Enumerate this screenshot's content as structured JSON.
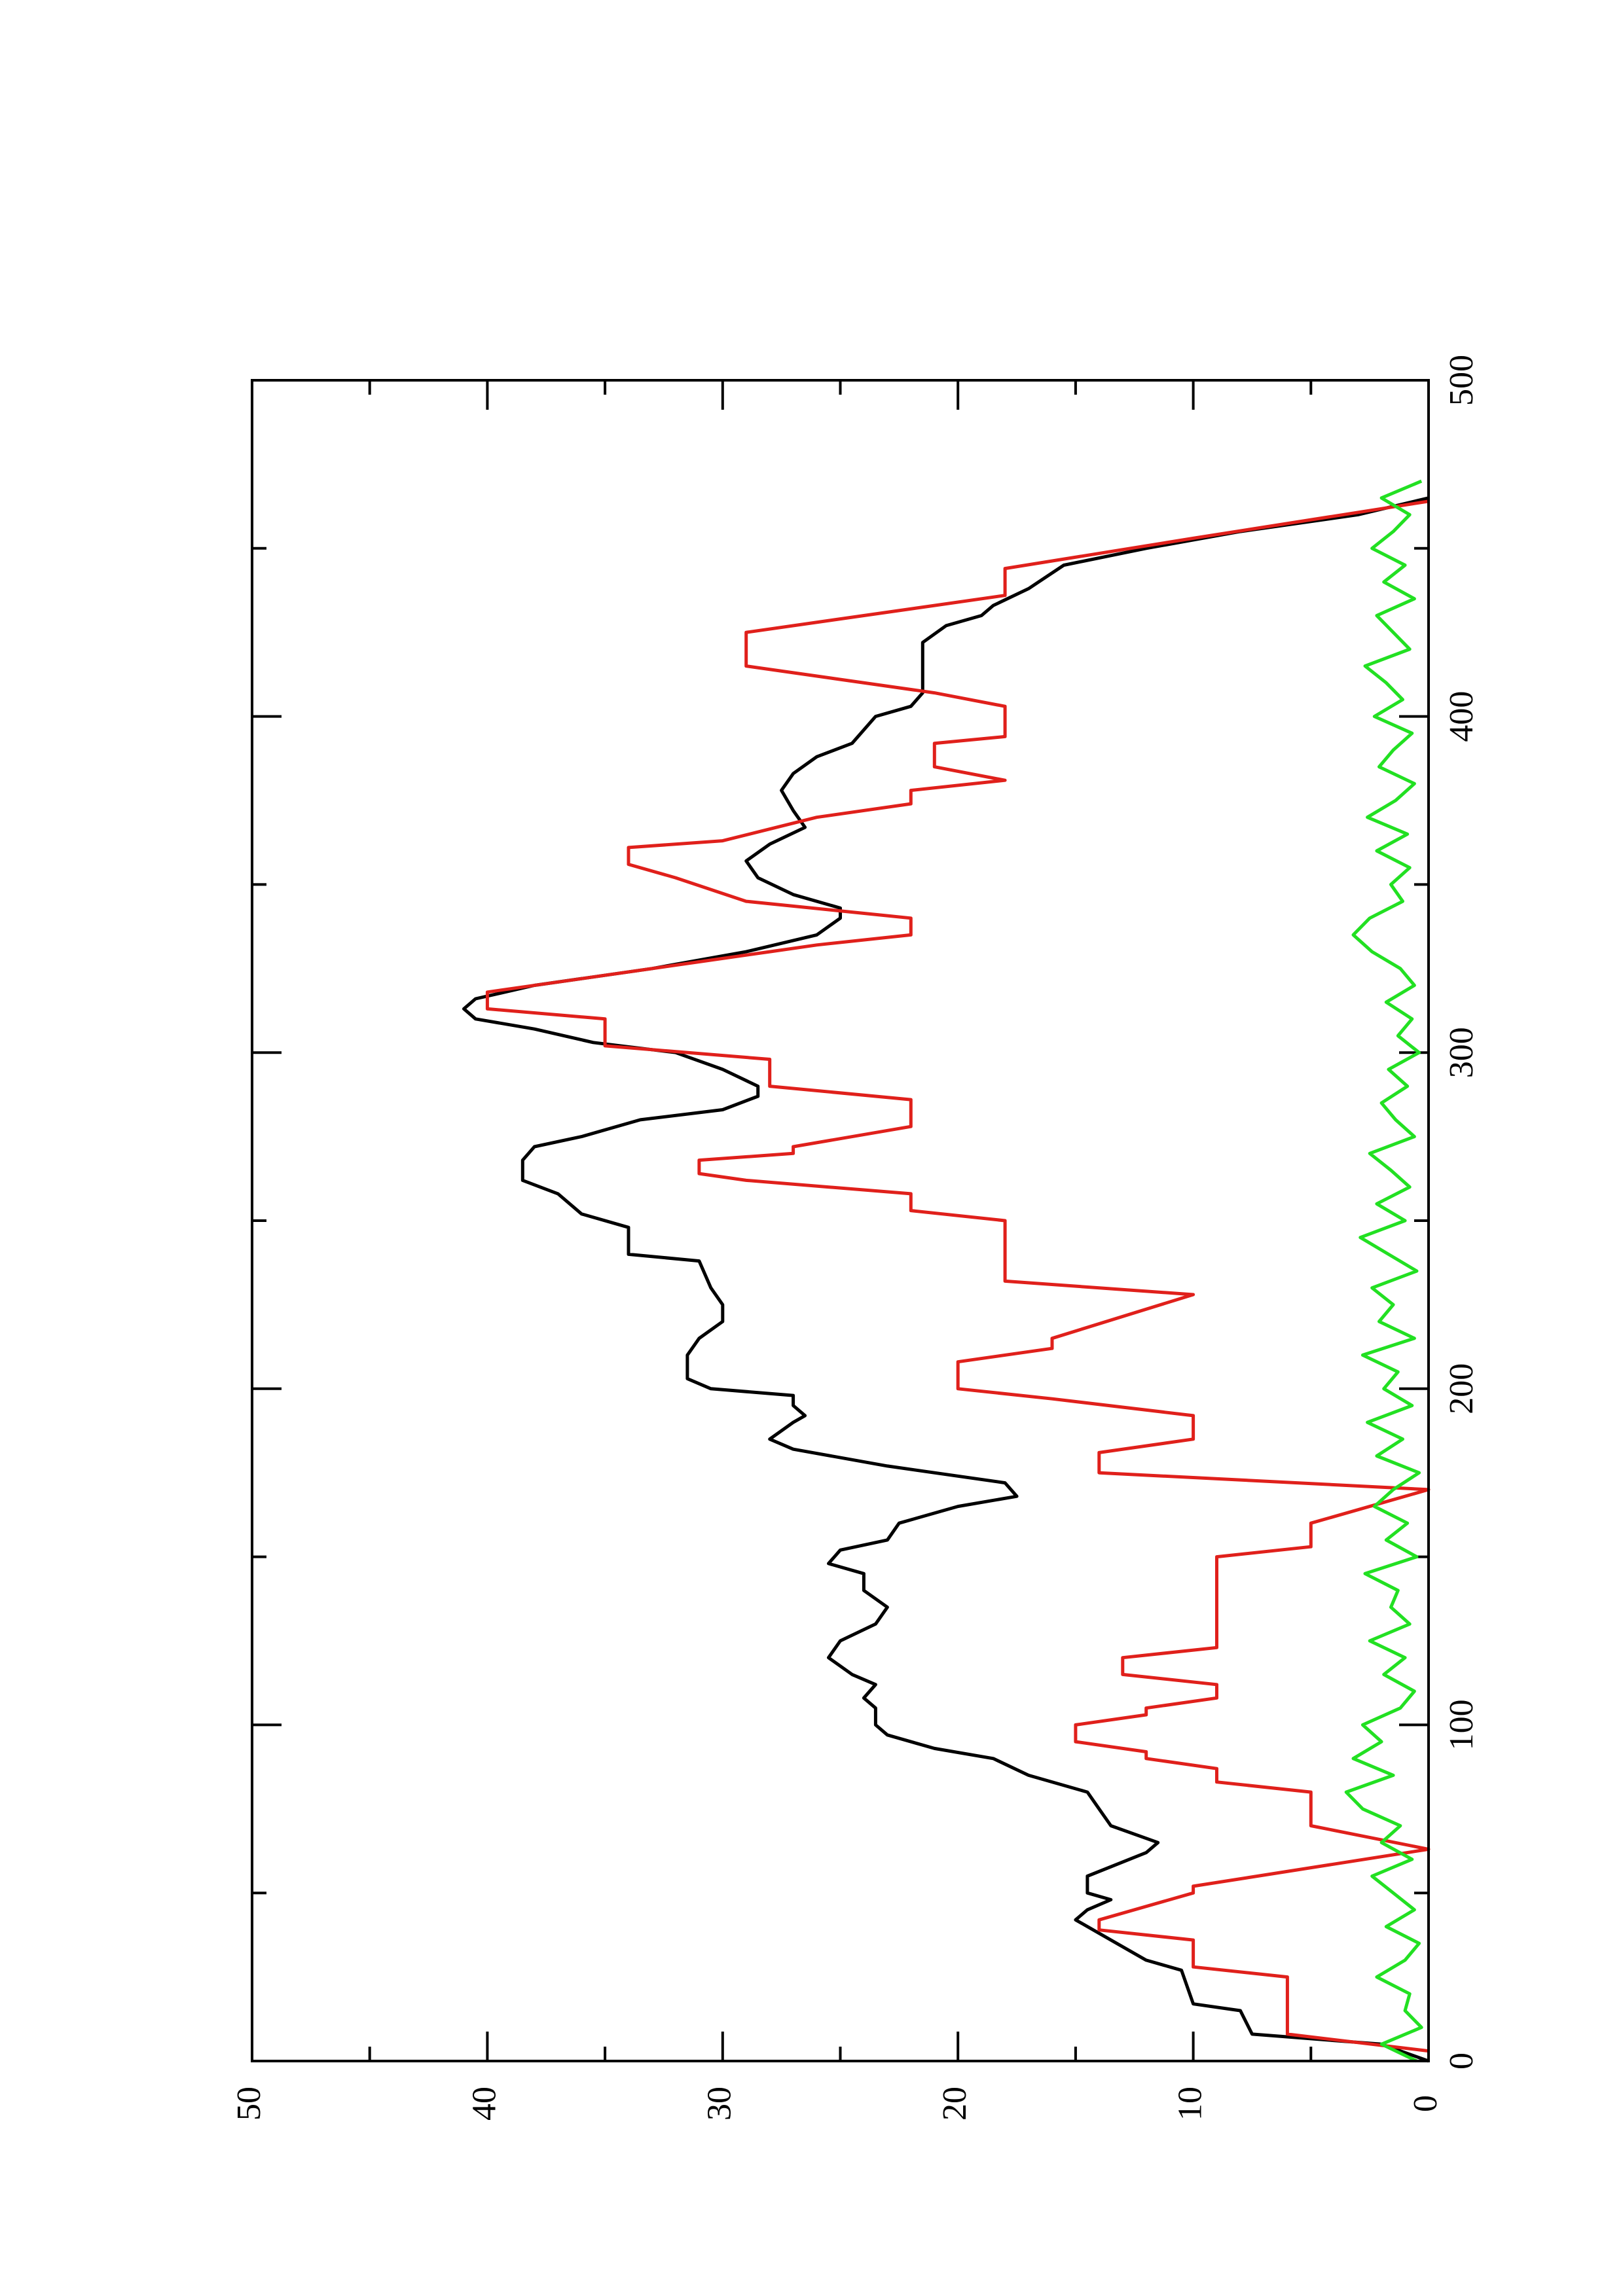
{
  "chart_data": {
    "type": "line",
    "xlim": [
      0,
      500
    ],
    "ylim": [
      0,
      50
    ],
    "xticks": [
      0,
      100,
      200,
      300,
      400,
      500
    ],
    "xminorticks": [
      50,
      150,
      250,
      350,
      450
    ],
    "yticks": [
      0,
      10,
      20,
      30,
      40,
      50
    ],
    "yminorticks": [
      5,
      15,
      25,
      35,
      45
    ],
    "series": [
      {
        "color": "#000000",
        "x": [
          0,
          5,
          8,
          15,
          17,
          27,
          30,
          38,
          42,
          45,
          48,
          50,
          55,
          62,
          65,
          70,
          75,
          80,
          85,
          90,
          93,
          97,
          100,
          105,
          108,
          112,
          115,
          120,
          125,
          130,
          135,
          140,
          145,
          148,
          152,
          155,
          160,
          165,
          168,
          172,
          177,
          182,
          185,
          190,
          192,
          195,
          198,
          200,
          203,
          210,
          215,
          220,
          225,
          230,
          238,
          240,
          248,
          252,
          258,
          262,
          268,
          272,
          275,
          280,
          283,
          287,
          290,
          295,
          300,
          303,
          307,
          310,
          313,
          316,
          320,
          325,
          330,
          335,
          340,
          343,
          347,
          352,
          357,
          362,
          367,
          372,
          378,
          383,
          388,
          392,
          400,
          403,
          407,
          410,
          415,
          418,
          422,
          427,
          430,
          433,
          438,
          445,
          450,
          455,
          460,
          465
        ],
        "values": [
          0,
          2,
          7.5,
          8,
          10,
          10.5,
          12,
          14,
          15,
          14.5,
          13.5,
          14.5,
          14.5,
          12,
          11.5,
          13.5,
          14,
          14.5,
          17,
          18.5,
          21,
          23,
          23.5,
          23.5,
          24,
          23.5,
          24.5,
          25.5,
          25,
          23.5,
          23,
          24,
          24,
          25.5,
          25,
          23,
          22.5,
          20,
          17.5,
          18,
          23,
          27,
          28,
          27,
          26.5,
          27,
          27,
          30.5,
          31.5,
          31.5,
          31,
          30,
          30,
          30.5,
          31,
          34,
          34,
          36,
          37,
          38.5,
          38.5,
          38,
          36,
          33.5,
          30,
          28.5,
          28.5,
          30,
          32,
          35.5,
          38,
          40.5,
          41,
          40.5,
          38,
          33,
          29,
          26,
          25,
          25,
          27,
          28.5,
          29,
          28,
          26.5,
          27,
          27.5,
          27,
          26,
          24.5,
          23.5,
          22,
          21.5,
          21.5,
          21.5,
          21.5,
          21.5,
          20.5,
          19,
          18.5,
          17,
          15.5,
          12,
          8,
          3,
          0
        ]
      },
      {
        "color": "#e0201b",
        "x": [
          3,
          8,
          25,
          28,
          36,
          39,
          42,
          50,
          52,
          63,
          70,
          80,
          83,
          87,
          90,
          92,
          95,
          100,
          103,
          105,
          108,
          112,
          115,
          120,
          123,
          150,
          153,
          160,
          170,
          175,
          181,
          185,
          192,
          197,
          200,
          208,
          212,
          215,
          228,
          232,
          250,
          253,
          258,
          262,
          264,
          268,
          270,
          272,
          278,
          286,
          290,
          298,
          302,
          310,
          313,
          318,
          330,
          332,
          335,
          340,
          345,
          352,
          356,
          361,
          363,
          370,
          374,
          378,
          381,
          385,
          392,
          394,
          403,
          407,
          411,
          415,
          425,
          433,
          436,
          444,
          453,
          464
        ],
        "values": [
          0,
          6,
          6,
          10,
          10,
          14,
          14,
          10,
          10,
          0,
          5,
          5,
          9,
          9,
          12,
          12,
          15,
          15,
          12,
          12,
          9,
          9,
          13,
          13,
          9,
          9,
          5,
          5,
          0,
          14,
          14,
          10,
          10,
          16,
          20,
          20,
          16,
          16,
          10,
          18,
          18,
          22,
          22,
          29,
          31,
          31,
          27,
          27,
          22,
          22,
          28,
          28,
          35,
          35,
          40,
          40,
          28,
          26,
          22,
          22,
          29,
          32,
          34,
          34,
          30,
          26,
          22,
          22,
          18,
          21,
          21,
          18,
          18,
          21,
          25,
          29,
          29,
          21,
          18,
          18,
          10,
          0
        ]
      },
      {
        "color": "#22e022",
        "x": [
          0,
          5,
          10,
          15,
          20,
          25,
          30,
          35,
          40,
          45,
          50,
          55,
          60,
          65,
          70,
          75,
          80,
          85,
          90,
          95,
          100,
          105,
          110,
          115,
          120,
          125,
          130,
          135,
          140,
          145,
          150,
          155,
          160,
          165,
          170,
          175,
          180,
          185,
          190,
          195,
          200,
          205,
          210,
          215,
          220,
          225,
          230,
          235,
          240,
          245,
          250,
          255,
          260,
          265,
          270,
          275,
          280,
          285,
          290,
          295,
          300,
          305,
          310,
          315,
          320,
          325,
          330,
          335,
          340,
          345,
          350,
          355,
          360,
          365,
          370,
          375,
          380,
          385,
          390,
          395,
          400,
          405,
          410,
          415,
          420,
          425,
          430,
          435,
          440,
          445,
          450,
          455,
          460,
          465,
          470
        ],
        "values": [
          0.5,
          2,
          0.3,
          1,
          0.8,
          2.2,
          1,
          0.4,
          1.8,
          0.6,
          1.5,
          2.4,
          0.7,
          2,
          1.2,
          2.8,
          3.5,
          1.5,
          3.2,
          2,
          2.8,
          1.2,
          0.6,
          1.9,
          1,
          2.5,
          0.8,
          1.6,
          1.3,
          2.7,
          0.5,
          1.8,
          0.9,
          2.3,
          1.5,
          0.4,
          2.2,
          1.1,
          2.6,
          0.7,
          1.9,
          1.3,
          2.8,
          0.6,
          2.1,
          1.5,
          2.4,
          0.5,
          1.7,
          2.9,
          1,
          2.2,
          0.8,
          1.6,
          2.5,
          0.6,
          1.4,
          2,
          0.9,
          1.7,
          0.4,
          1.3,
          0.7,
          1.8,
          0.6,
          1.2,
          2.4,
          3.2,
          2.5,
          1.1,
          1.6,
          0.8,
          2.2,
          0.9,
          2.6,
          1.4,
          0.6,
          2.1,
          1.5,
          0.7,
          2.3,
          1.1,
          1.8,
          2.7,
          0.8,
          1.5,
          2.2,
          0.6,
          1.9,
          1,
          2.4,
          1.5,
          0.8,
          2,
          0.3
        ]
      }
    ]
  }
}
